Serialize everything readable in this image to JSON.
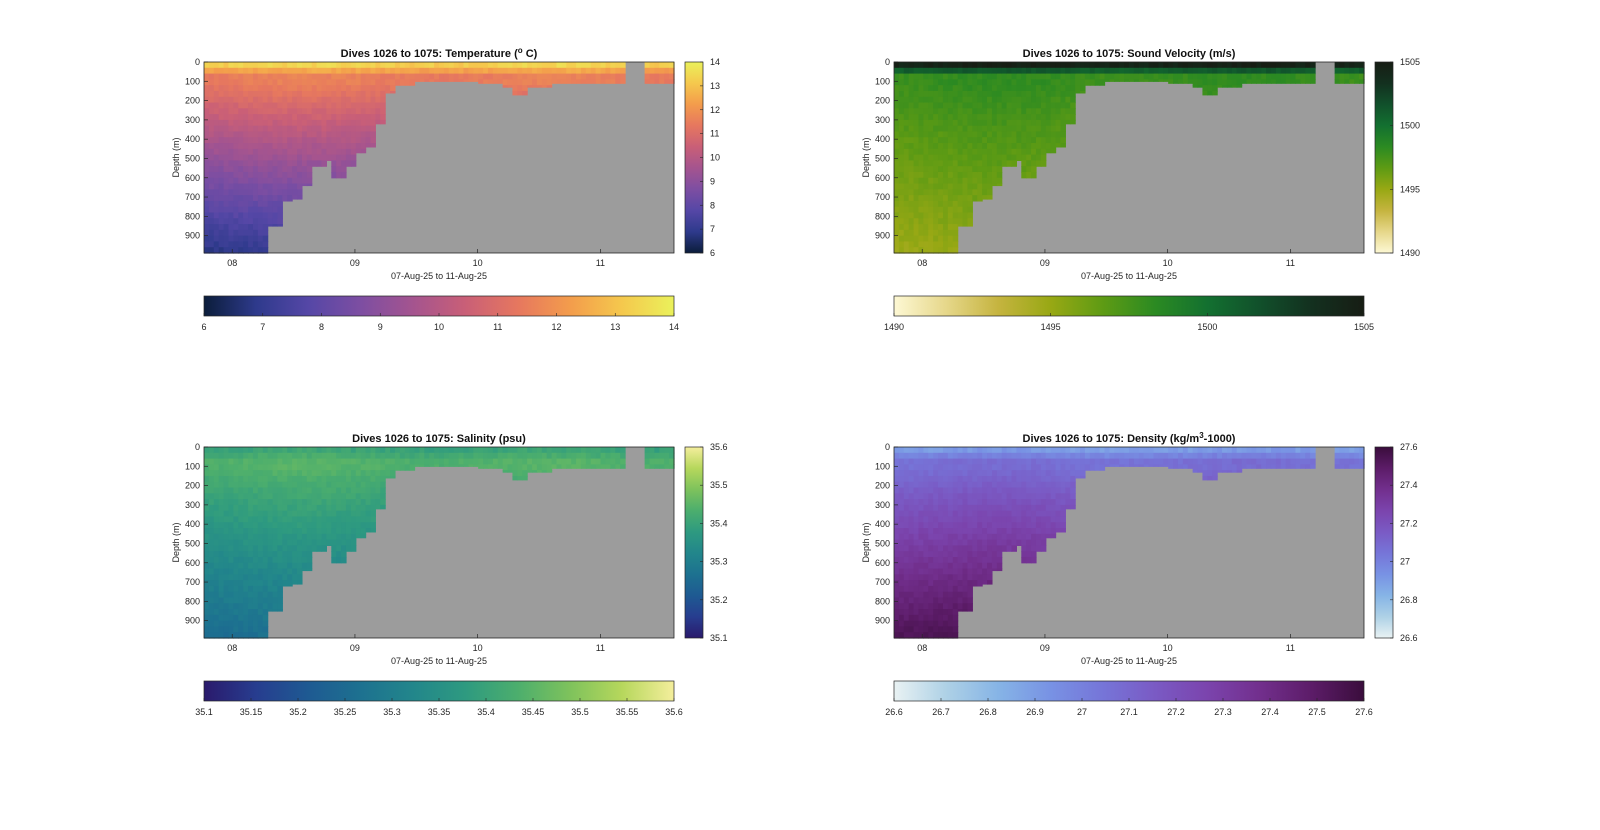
{
  "figure": {
    "background": "#ffffff",
    "nodata_color": "#9c9c9c"
  },
  "chart_data": [
    {
      "type": "heatmap",
      "id": "temperature",
      "title_parts": [
        "Dives 1026 to 1075: Temperature (",
        "o",
        " C)"
      ],
      "title_modes": [
        "normal",
        "sup",
        "normal"
      ],
      "ylabel": "Depth (m)",
      "xlabel": "07-Aug-25 to 11-Aug-25",
      "x_ticks": [
        "08",
        "09",
        "10",
        "11"
      ],
      "x_tick_values": [
        8,
        9,
        10,
        11
      ],
      "xlim": [
        7.77,
        11.6
      ],
      "y_ticks": [
        "0",
        "100",
        "200",
        "300",
        "400",
        "500",
        "600",
        "700",
        "800",
        "900"
      ],
      "y_tick_values": [
        0,
        100,
        200,
        300,
        400,
        500,
        600,
        700,
        800,
        900
      ],
      "ylim": [
        0,
        990
      ],
      "y_reversed": true,
      "clim": [
        6,
        14
      ],
      "colorbar_side_ticks": [
        "6",
        "7",
        "8",
        "9",
        "10",
        "11",
        "12",
        "13",
        "14"
      ],
      "colorbar_bottom_ticks": [
        "6",
        "7",
        "8",
        "9",
        "10",
        "11",
        "12",
        "13",
        "14"
      ],
      "colormap": [
        "#0b1d3a",
        "#2e3a8c",
        "#5547a6",
        "#7d4ea2",
        "#a4548f",
        "#c95f77",
        "#e6775f",
        "#f39c4c",
        "#f5c84d",
        "#eaf15b"
      ],
      "field": "temperature",
      "surface_value": 13.3,
      "mixed_value": 11.5,
      "deep_value": 6.9
    },
    {
      "type": "heatmap",
      "id": "sound_velocity",
      "title_parts": [
        "Dives 1026 to 1075: Sound Velocity (m/s)"
      ],
      "title_modes": [
        "normal"
      ],
      "ylabel": "Depth (m)",
      "xlabel": "07-Aug-25 to 11-Aug-25",
      "x_ticks": [
        "08",
        "09",
        "10",
        "11"
      ],
      "x_tick_values": [
        8,
        9,
        10,
        11
      ],
      "xlim": [
        7.77,
        11.6
      ],
      "y_ticks": [
        "0",
        "100",
        "200",
        "300",
        "400",
        "500",
        "600",
        "700",
        "800",
        "900"
      ],
      "y_tick_values": [
        0,
        100,
        200,
        300,
        400,
        500,
        600,
        700,
        800,
        900
      ],
      "ylim": [
        0,
        990
      ],
      "y_reversed": true,
      "clim": [
        1490,
        1505
      ],
      "colorbar_side_ticks": [
        "1490",
        "1495",
        "1500",
        "1505"
      ],
      "colorbar_bottom_ticks": [
        "1490",
        "1495",
        "1500",
        "1505"
      ],
      "colormap": [
        "#fdf8d4",
        "#e6d78a",
        "#c5b43f",
        "#98a814",
        "#5e9b14",
        "#2b8a22",
        "#137030",
        "#11502b",
        "#13301f",
        "#171d14"
      ],
      "field": "sound",
      "surface_value": 1504.5,
      "mixed_value": 1498.0,
      "deep_value": 1495.0
    },
    {
      "type": "heatmap",
      "id": "salinity",
      "title_parts": [
        "Dives 1026 to 1075: Salinity (psu)"
      ],
      "title_modes": [
        "normal"
      ],
      "ylabel": "Depth (m)",
      "xlabel": "07-Aug-25 to 11-Aug-25",
      "x_ticks": [
        "08",
        "09",
        "10",
        "11"
      ],
      "x_tick_values": [
        8,
        9,
        10,
        11
      ],
      "xlim": [
        7.77,
        11.6
      ],
      "y_ticks": [
        "0",
        "100",
        "200",
        "300",
        "400",
        "500",
        "600",
        "700",
        "800",
        "900"
      ],
      "y_tick_values": [
        0,
        100,
        200,
        300,
        400,
        500,
        600,
        700,
        800,
        900
      ],
      "ylim": [
        0,
        990
      ],
      "y_reversed": true,
      "clim": [
        35.1,
        35.6
      ],
      "colorbar_side_ticks": [
        "35.1",
        "35.2",
        "35.3",
        "35.4",
        "35.5",
        "35.6"
      ],
      "colorbar_bottom_ticks": [
        "35.1",
        "35.15",
        "35.2",
        "35.25",
        "35.3",
        "35.35",
        "35.4",
        "35.45",
        "35.5",
        "35.55",
        "35.6"
      ],
      "colormap": [
        "#2a1a6c",
        "#273d8f",
        "#1e5a92",
        "#1d7190",
        "#22868b",
        "#2e9a80",
        "#4cae6d",
        "#7ec25c",
        "#b6d75c",
        "#f4ee9c"
      ],
      "field": "salinity",
      "surface_value": 35.4,
      "mixed_value": 35.44,
      "deep_value": 35.26
    },
    {
      "type": "heatmap",
      "id": "density",
      "title_parts": [
        "Dives 1026 to 1075: Density (kg/m",
        "3",
        "-1000)"
      ],
      "title_modes": [
        "normal",
        "sup",
        "normal"
      ],
      "ylabel": "Depth (m)",
      "xlabel": "07-Aug-25 to 11-Aug-25",
      "x_ticks": [
        "08",
        "09",
        "10",
        "11"
      ],
      "x_tick_values": [
        8,
        9,
        10,
        11
      ],
      "xlim": [
        7.77,
        11.6
      ],
      "y_ticks": [
        "0",
        "100",
        "200",
        "300",
        "400",
        "500",
        "600",
        "700",
        "800",
        "900"
      ],
      "y_tick_values": [
        0,
        100,
        200,
        300,
        400,
        500,
        600,
        700,
        800,
        900
      ],
      "ylim": [
        0,
        990
      ],
      "y_reversed": true,
      "clim": [
        26.6,
        27.6
      ],
      "colorbar_side_ticks": [
        "26.6",
        "26.8",
        "27",
        "27.2",
        "27.4",
        "27.6"
      ],
      "colorbar_bottom_ticks": [
        "26.6",
        "26.7",
        "26.8",
        "26.9",
        "27",
        "27.1",
        "27.2",
        "27.3",
        "27.4",
        "27.5",
        "27.6"
      ],
      "colormap": [
        "#e9f2f3",
        "#aed1e6",
        "#86b4e6",
        "#7892e4",
        "#7675d8",
        "#7a5ac4",
        "#7b44ad",
        "#722f8d",
        "#5c1c68",
        "#3a0d3c"
      ],
      "field": "density",
      "surface_value": 26.9,
      "mixed_value": 27.07,
      "deep_value": 27.55
    }
  ],
  "profile": {
    "bottom_depth_by_day": [
      [
        7.77,
        990
      ],
      [
        8.2,
        990
      ],
      [
        8.3,
        850
      ],
      [
        8.4,
        720
      ],
      [
        8.5,
        710
      ],
      [
        8.57,
        640
      ],
      [
        8.65,
        540
      ],
      [
        8.75,
        510
      ],
      [
        8.82,
        600
      ],
      [
        8.92,
        540
      ],
      [
        9.02,
        470
      ],
      [
        9.08,
        440
      ],
      [
        9.18,
        320
      ],
      [
        9.25,
        160
      ],
      [
        9.32,
        120
      ],
      [
        9.5,
        100
      ],
      [
        9.8,
        100
      ],
      [
        10.0,
        110
      ],
      [
        10.2,
        130
      ],
      [
        10.3,
        170
      ],
      [
        10.4,
        130
      ],
      [
        10.6,
        110
      ],
      [
        10.8,
        110
      ],
      [
        11.6,
        110
      ]
    ],
    "gaps": [
      [
        11.22,
        11.37
      ]
    ],
    "mixed_layer_depth": 70,
    "thermocline_bottom": 110
  }
}
